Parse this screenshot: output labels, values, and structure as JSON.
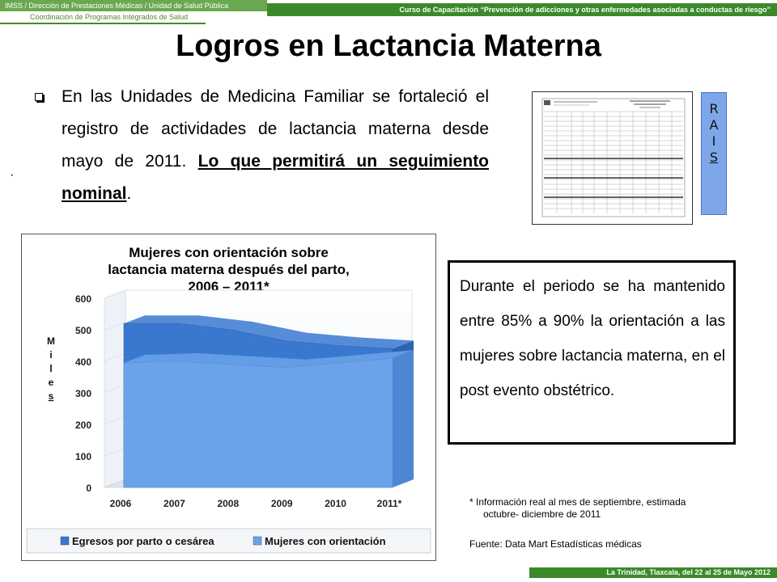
{
  "header": {
    "left_line1": "IMSS / Dirección de Prestaciones Médicas / Unidad de Salud Pública",
    "left_line2": "Coordinación de Programas Integrados de Salud",
    "right": "Curso de Capacitación “Prevención de adicciones y otras enfermedades asociadas a conductas de riesgo”"
  },
  "title": "Logros en Lactancia Materna",
  "paragraph": {
    "text": "En las Unidades de Medicina Familiar se fortaleció el registro de  actividades de lactancia materna desde mayo de 2011.",
    "emphasis": "Lo que permitirá un seguimiento nominal",
    "end": "."
  },
  "dot": "·",
  "rais": {
    "letters": [
      "R",
      "A",
      "I",
      "S"
    ]
  },
  "note_box": "Durante el periodo se ha mantenido entre 85% a 90% la orientación a las mujeres sobre lactancia materna, en el post evento obstétrico.",
  "footnote": {
    "line1": "* Información  real al mes de septiembre, estimada",
    "line2": "octubre- diciembre de 2011",
    "source": "Fuente: Data Mart  Estadísticas médicas"
  },
  "footer": "La Trinidad, Tlaxcala, del 22 al 25 de Mayo 2012",
  "chart_data": {
    "type": "area",
    "title_lines": [
      "Mujeres con orientación sobre",
      "lactancia materna después del parto,",
      "2006 – 2011*"
    ],
    "ylabel_letters": [
      "M",
      "i",
      "l",
      "e",
      "s"
    ],
    "categories": [
      "2006",
      "2007",
      "2008",
      "2009",
      "2010",
      "2011*"
    ],
    "ylim": [
      0,
      600
    ],
    "yticks": [
      "0",
      "100",
      "200",
      "300",
      "400",
      "500",
      "600"
    ],
    "series": [
      {
        "name": "Egresos por parto o cesárea",
        "values": [
          520,
          520,
          500,
          465,
          450,
          440
        ],
        "color": "#3a78d0"
      },
      {
        "name": "Mujeres con orientación",
        "values": [
          395,
          400,
          390,
          380,
          395,
          410
        ],
        "color": "#6ba3ea"
      }
    ],
    "legend_position": "bottom"
  }
}
